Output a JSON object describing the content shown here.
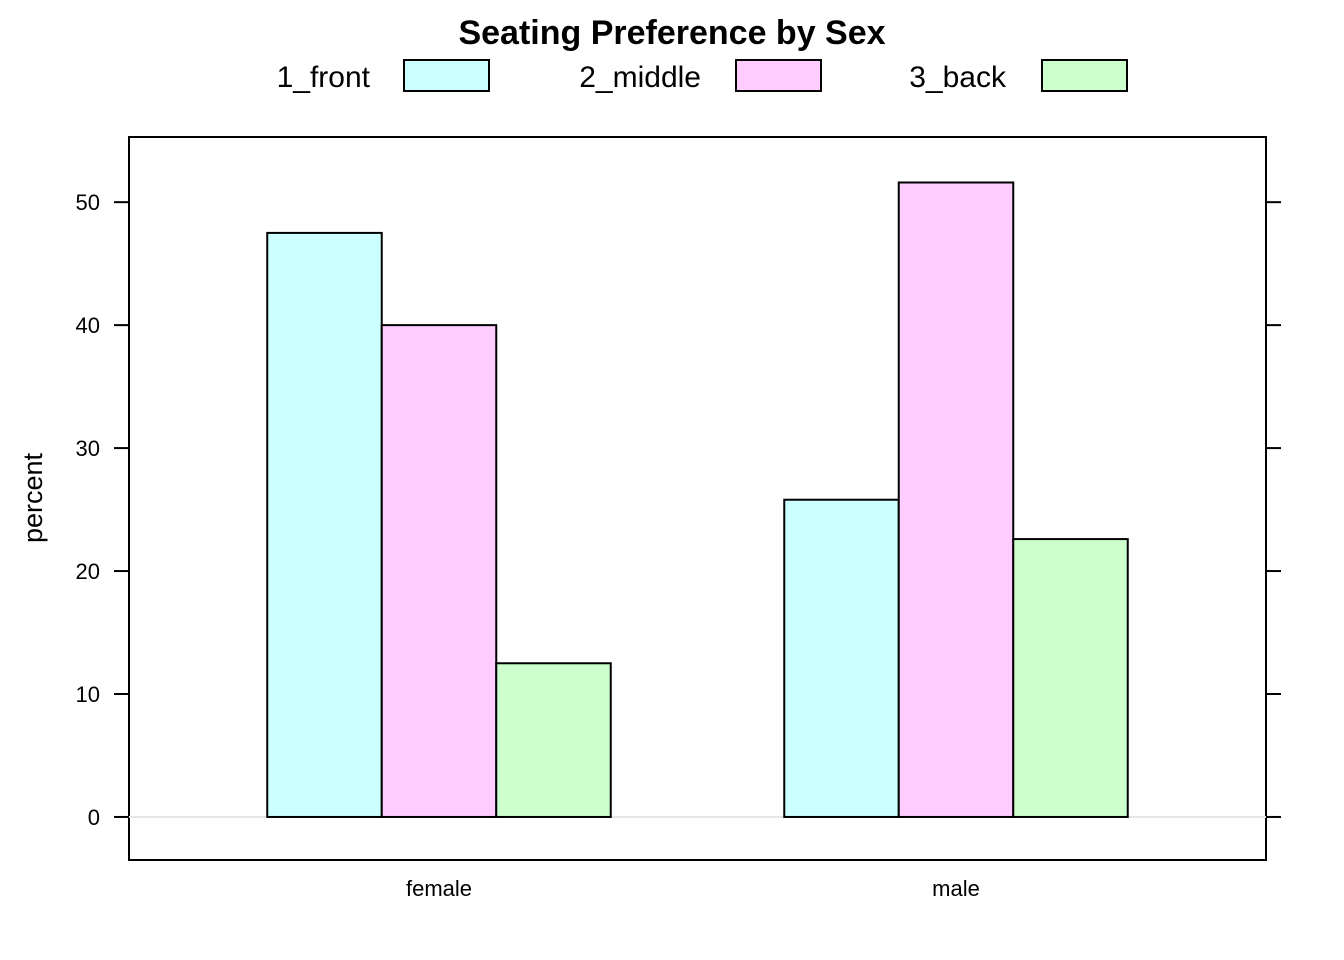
{
  "chart_data": {
    "type": "bar",
    "title": "Seating Preference by Sex",
    "xlabel": "",
    "ylabel": "percent",
    "categories": [
      "female",
      "male"
    ],
    "series": [
      {
        "name": "1_front",
        "color": "#ccffff",
        "values": [
          47.5,
          25.8
        ]
      },
      {
        "name": "2_middle",
        "color": "#ffccff",
        "values": [
          40.0,
          51.6
        ]
      },
      {
        "name": "3_back",
        "color": "#ccffcc",
        "values": [
          12.5,
          22.6
        ]
      }
    ],
    "yticks": [
      0,
      10,
      20,
      30,
      40,
      50
    ],
    "ylim": [
      -3.5,
      55.3
    ],
    "grid": false,
    "legend_position": "top"
  }
}
